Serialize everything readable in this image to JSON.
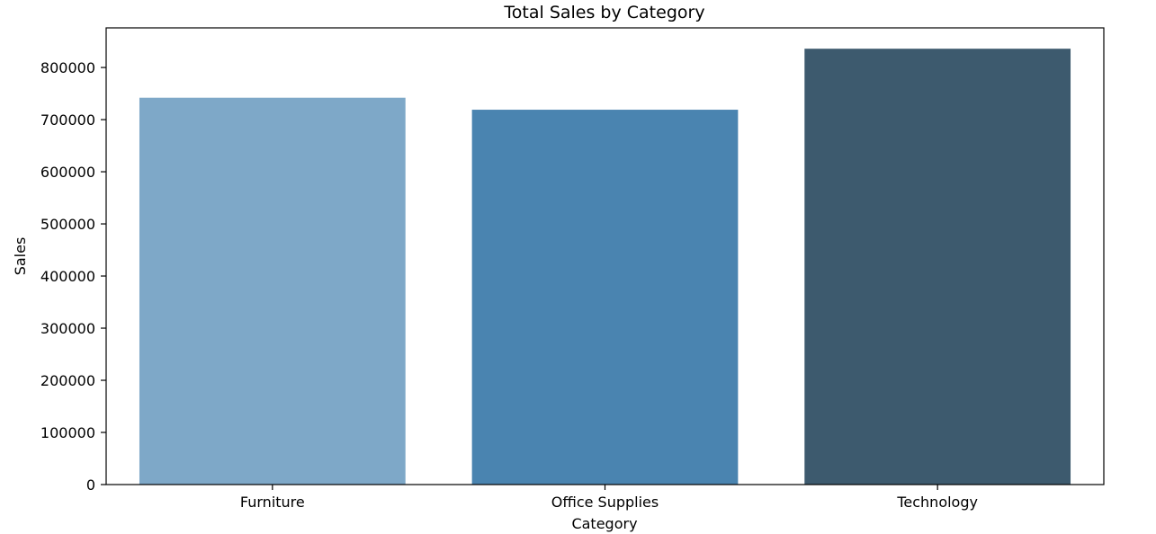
{
  "chart_data": {
    "type": "bar",
    "title": "Total Sales by Category",
    "xlabel": "Category",
    "ylabel": "Sales",
    "categories": [
      "Furniture",
      "Office Supplies",
      "Technology"
    ],
    "values": [
      742000,
      719000,
      836000
    ],
    "colors": [
      "#7ea8c8",
      "#4a84b0",
      "#3d5a6e"
    ],
    "ylim": [
      0,
      876000
    ],
    "yticks": [
      0,
      100000,
      200000,
      300000,
      400000,
      500000,
      600000,
      700000,
      800000
    ],
    "grid": false,
    "legend": "none"
  }
}
